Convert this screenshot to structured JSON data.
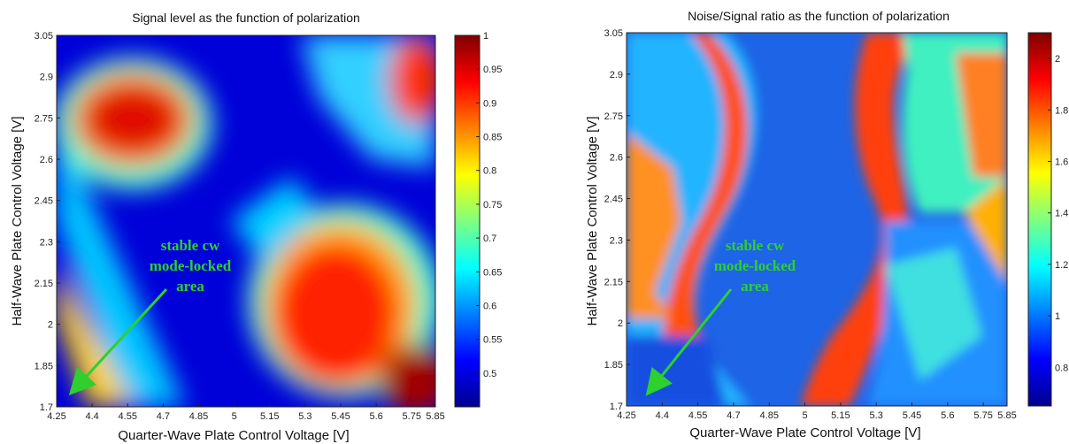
{
  "chart_data": [
    {
      "type": "heatmap",
      "title": "Signal level as the function of polarization",
      "xlabel": "Quarter-Wave Plate Control Voltage [V]",
      "ylabel": "Half-Wave Plate Control Voltage [V]",
      "xlim": [
        4.25,
        5.85
      ],
      "ylim": [
        1.7,
        3.05
      ],
      "xticks": [
        "4.25",
        "4.4",
        "4.55",
        "4.7",
        "4.85",
        "5",
        "5.15",
        "5.3",
        "5.45",
        "5.6",
        "5.75",
        "5.85"
      ],
      "yticks": [
        "1.7",
        "1.85",
        "2",
        "2.15",
        "2.3",
        "2.45",
        "2.6",
        "2.75",
        "2.9",
        "3.05"
      ],
      "colorbar": {
        "min": 0.45,
        "max": 1.0,
        "ticks": [
          "0.5",
          "0.55",
          "0.6",
          "0.65",
          "0.7",
          "0.75",
          "0.8",
          "0.85",
          "0.9",
          "0.95",
          "1"
        ]
      },
      "annotation": {
        "lines": [
          "stable cw",
          "mode-locked",
          "area"
        ],
        "color": "#2ed02e",
        "arrow_target": [
          4.3,
          1.72
        ]
      },
      "regions_high_signal": [
        {
          "x": 4.5,
          "y": 2.72,
          "level": 1.0
        },
        {
          "x": 5.4,
          "y": 1.95,
          "level": 1.0
        },
        {
          "x": 5.75,
          "y": 2.9,
          "level": 0.95
        },
        {
          "x": 5.8,
          "y": 1.75,
          "level": 1.0
        }
      ]
    },
    {
      "type": "heatmap",
      "title": "Noise/Signal ratio as the function of polarization",
      "xlabel": "Quarter-Wave Plate Control Voltage [V]",
      "ylabel": "Half-Wave Plate Control Voltage [V]",
      "xlim": [
        4.25,
        5.85
      ],
      "ylim": [
        1.7,
        3.05
      ],
      "xticks": [
        "4.25",
        "4.4",
        "4.55",
        "4.7",
        "4.85",
        "5",
        "5.15",
        "5.3",
        "5.45",
        "5.6",
        "5.75",
        "5.85"
      ],
      "yticks": [
        "1.7",
        "1.85",
        "2",
        "2.15",
        "2.3",
        "2.45",
        "2.6",
        "2.75",
        "2.9",
        "3.05"
      ],
      "colorbar": {
        "min": 0.65,
        "max": 2.1,
        "ticks": [
          "0.8",
          "1",
          "1.2",
          "1.4",
          "1.6",
          "1.8",
          "2"
        ]
      },
      "annotation": {
        "lines": [
          "stable cw",
          "mode-locked",
          "area"
        ],
        "color": "#2ed02e",
        "arrow_target": [
          4.3,
          1.72
        ]
      }
    }
  ],
  "colormap": [
    "#00008f",
    "#0000ff",
    "#00a0ff",
    "#30ffcf",
    "#cfff30",
    "#ffb000",
    "#ff2000",
    "#800000"
  ]
}
